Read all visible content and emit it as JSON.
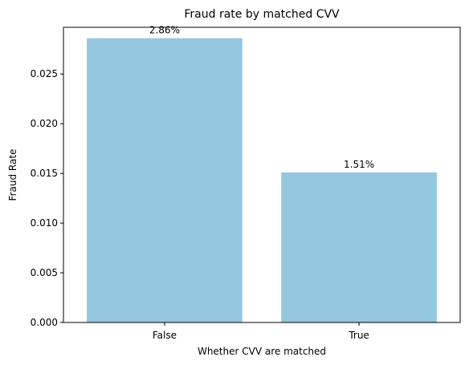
{
  "chart_data": {
    "type": "bar",
    "title": "Fraud rate by matched CVV",
    "xlabel": "Whether CVV are matched",
    "ylabel": "Fraud Rate",
    "categories": [
      "False",
      "True"
    ],
    "values": [
      0.0286,
      0.0151
    ],
    "data_labels": [
      "2.86%",
      "1.51%"
    ],
    "ylim": [
      0,
      0.0297
    ],
    "yticks": [
      0.0,
      0.005,
      0.01,
      0.015,
      0.02,
      0.025
    ],
    "ytick_labels": [
      "0.000",
      "0.005",
      "0.010",
      "0.015",
      "0.020",
      "0.025"
    ],
    "grid": false,
    "legend": "none",
    "bar_color": "#95c8de"
  }
}
